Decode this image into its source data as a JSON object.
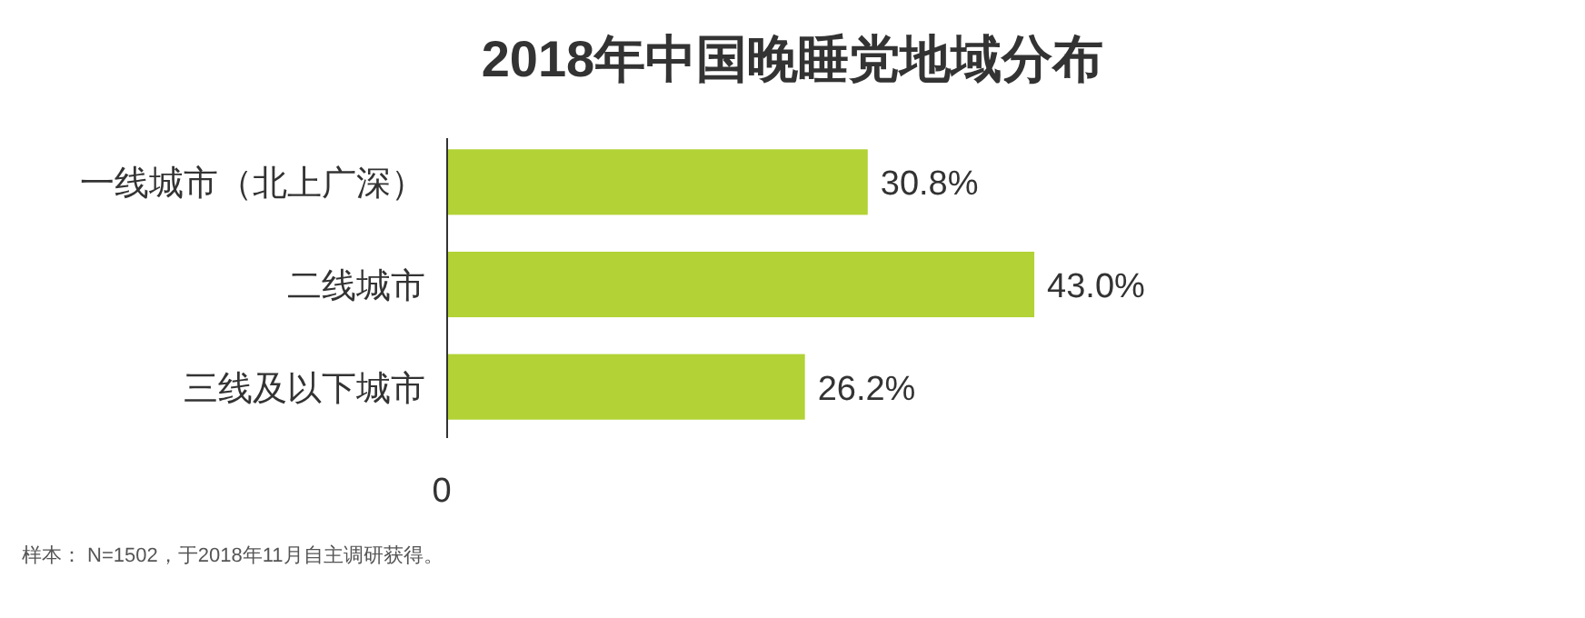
{
  "chart_data": {
    "type": "bar",
    "orientation": "horizontal",
    "title": "2018年中国晚睡党地域分布",
    "categories": [
      "一线城市（北上广深）",
      "二线城市",
      "三线及以下城市"
    ],
    "values": [
      30.8,
      43.0,
      26.2
    ],
    "value_labels": [
      "30.8%",
      "43.0%",
      "26.2%"
    ],
    "color": "#b2d235",
    "annotations": [
      "0",
      "样本： N=1502，于2018年11月自主调研获得。"
    ]
  }
}
